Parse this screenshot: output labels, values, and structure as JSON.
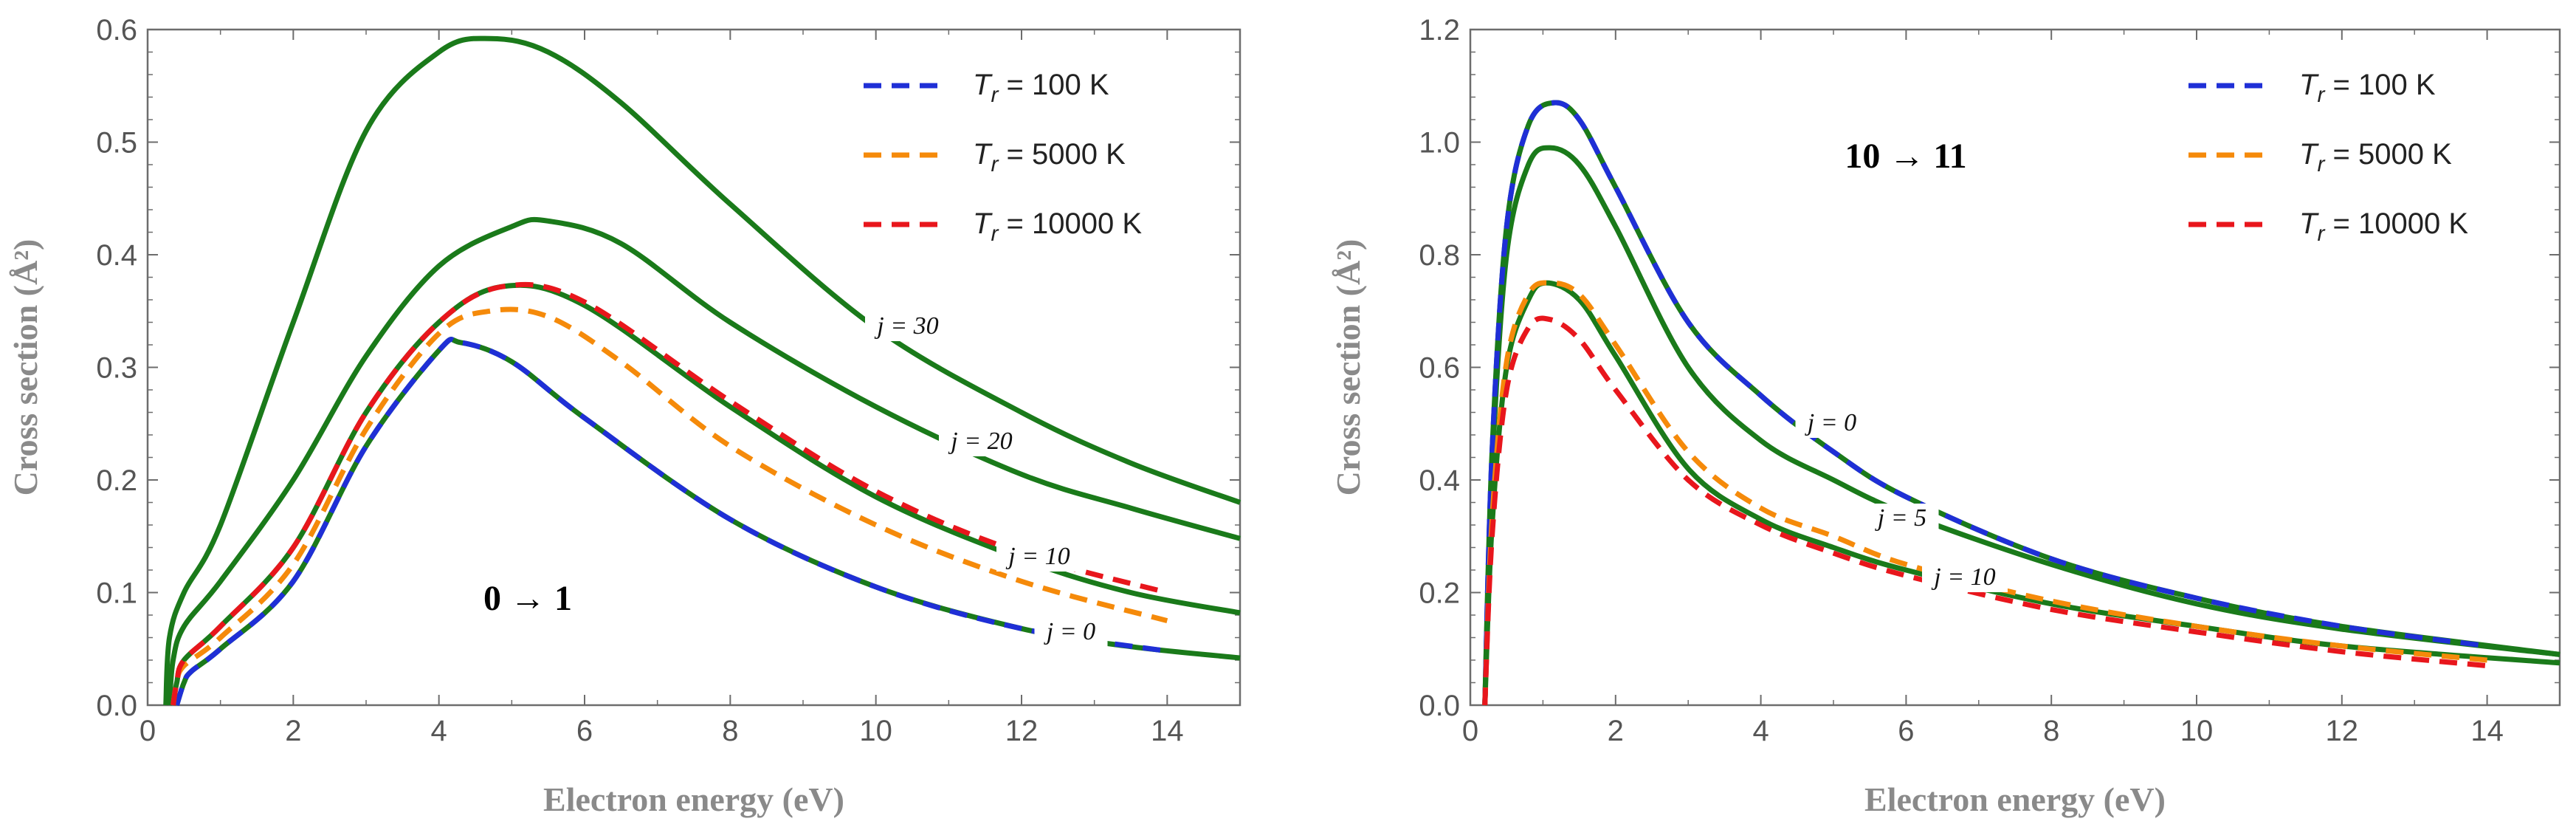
{
  "chart_data": [
    {
      "type": "line",
      "title": "",
      "annotation": "0 → 1",
      "xlabel": "Electron energy (eV)",
      "ylabel": "Cross section (Å²)",
      "xlim": [
        0,
        15
      ],
      "ylim": [
        0,
        0.6
      ],
      "xticks": [
        "0",
        "2",
        "4",
        "6",
        "8",
        "10",
        "12",
        "14"
      ],
      "yticks": [
        "0.0",
        "0.1",
        "0.2",
        "0.3",
        "0.4",
        "0.5",
        "0.6"
      ],
      "legend_position": "top-right",
      "legend": [
        {
          "symbol": "T",
          "subscript": "r",
          "rest": " = 100 K",
          "color": "#1f2fd6"
        },
        {
          "symbol": "T",
          "subscript": "r",
          "rest": " = 5000 K",
          "color": "#f58a0a"
        },
        {
          "symbol": "T",
          "subscript": "r",
          "rest": " = 10000 K",
          "color": "#e8161c"
        }
      ],
      "series": [
        {
          "name": "j = 30",
          "label": "j = 30",
          "style": "solid",
          "color": "#1a7a1a",
          "x": [
            0.25,
            0.3,
            0.5,
            1.0,
            2.0,
            3.0,
            4.0,
            4.7,
            5.5,
            6.5,
            8.0,
            10.0,
            12.0,
            13.5,
            15.0
          ],
          "y": [
            0.0,
            0.06,
            0.1,
            0.16,
            0.34,
            0.51,
            0.58,
            0.592,
            0.58,
            0.535,
            0.445,
            0.335,
            0.26,
            0.215,
            0.18
          ]
        },
        {
          "name": "j = 20",
          "label": "j = 20",
          "style": "solid",
          "color": "#1a7a1a",
          "x": [
            0.3,
            0.35,
            0.5,
            1.0,
            2.0,
            3.0,
            4.0,
            5.0,
            5.5,
            6.5,
            8.0,
            10.0,
            12.0,
            13.5,
            15.0
          ],
          "y": [
            0.0,
            0.04,
            0.07,
            0.11,
            0.2,
            0.31,
            0.39,
            0.425,
            0.43,
            0.41,
            0.34,
            0.265,
            0.205,
            0.175,
            0.148
          ]
        },
        {
          "name": "j = 10",
          "label": "j = 10",
          "style": "solid",
          "color": "#1a7a1a",
          "x": [
            0.35,
            0.4,
            0.5,
            1.0,
            2.0,
            3.0,
            4.0,
            4.9,
            6.0,
            8.0,
            10.0,
            12.0,
            13.5,
            15.0
          ],
          "y": [
            0.0,
            0.02,
            0.04,
            0.07,
            0.14,
            0.26,
            0.34,
            0.372,
            0.355,
            0.265,
            0.185,
            0.13,
            0.1,
            0.082
          ]
        },
        {
          "name": "j = 0",
          "label": "j = 0",
          "style": "solid",
          "color": "#1a7a1a",
          "x": [
            0.4,
            0.5,
            0.6,
            1.0,
            2.0,
            3.0,
            4.0,
            4.3,
            5.0,
            6.0,
            8.0,
            10.0,
            12.0,
            13.5,
            15.0
          ],
          "y": [
            0.0,
            0.02,
            0.03,
            0.05,
            0.11,
            0.23,
            0.315,
            0.322,
            0.305,
            0.255,
            0.165,
            0.105,
            0.068,
            0.052,
            0.042
          ]
        },
        {
          "name": "Tr = 100 K",
          "style": "dashed",
          "color": "#1f2fd6",
          "x": [
            0.4,
            0.5,
            0.6,
            1.0,
            2.0,
            3.0,
            4.0,
            4.3,
            5.0,
            6.0,
            8.0,
            10.0,
            12.0,
            14.0
          ],
          "y": [
            0.0,
            0.02,
            0.03,
            0.05,
            0.11,
            0.23,
            0.315,
            0.322,
            0.305,
            0.255,
            0.165,
            0.105,
            0.068,
            0.048
          ]
        },
        {
          "name": "Tr = 5000 K",
          "style": "dashed",
          "color": "#f58a0a",
          "x": [
            0.35,
            0.4,
            0.5,
            1.0,
            2.0,
            3.0,
            4.0,
            4.7,
            5.5,
            6.5,
            8.0,
            10.0,
            12.0,
            14.0
          ],
          "y": [
            0.0,
            0.02,
            0.035,
            0.06,
            0.125,
            0.245,
            0.33,
            0.35,
            0.345,
            0.305,
            0.23,
            0.16,
            0.11,
            0.075
          ]
        },
        {
          "name": "Tr = 10000 K",
          "style": "dashed",
          "color": "#e8161c",
          "x": [
            0.35,
            0.4,
            0.5,
            1.0,
            2.0,
            3.0,
            4.0,
            4.9,
            6.0,
            8.0,
            10.0,
            12.0,
            14.0
          ],
          "y": [
            0.0,
            0.02,
            0.04,
            0.07,
            0.14,
            0.26,
            0.34,
            0.372,
            0.358,
            0.27,
            0.19,
            0.135,
            0.1
          ]
        }
      ]
    },
    {
      "type": "line",
      "title": "",
      "annotation": "10 → 11",
      "xlabel": "Electron energy (eV)",
      "ylabel": "Cross section (Å²)",
      "xlim": [
        0,
        15
      ],
      "ylim": [
        0,
        1.2
      ],
      "xticks": [
        "0",
        "2",
        "4",
        "6",
        "8",
        "10",
        "12",
        "14"
      ],
      "yticks": [
        "0.0",
        "0.2",
        "0.4",
        "0.6",
        "0.8",
        "1.0",
        "1.2"
      ],
      "legend_position": "top-right",
      "legend": [
        {
          "symbol": "T",
          "subscript": "r",
          "rest": " = 100 K",
          "color": "#1f2fd6"
        },
        {
          "symbol": "T",
          "subscript": "r",
          "rest": " = 5000 K",
          "color": "#f58a0a"
        },
        {
          "symbol": "T",
          "subscript": "r",
          "rest": " = 10000 K",
          "color": "#e8161c"
        }
      ],
      "series": [
        {
          "name": "j = 0",
          "label": "j = 0",
          "style": "solid",
          "color": "#1a7a1a",
          "x": [
            0.2,
            0.3,
            0.5,
            0.8,
            1.15,
            1.5,
            2.0,
            3.0,
            4.0,
            5.0,
            6.0,
            8.0,
            10.0,
            12.0,
            15.0
          ],
          "y": [
            0.0,
            0.45,
            0.85,
            1.03,
            1.07,
            1.04,
            0.92,
            0.68,
            0.55,
            0.45,
            0.37,
            0.26,
            0.19,
            0.14,
            0.09
          ]
        },
        {
          "name": "j = 5",
          "label": "j = 5",
          "style": "solid",
          "color": "#1a7a1a",
          "x": [
            0.2,
            0.3,
            0.5,
            0.8,
            1.1,
            1.5,
            2.0,
            3.0,
            4.0,
            5.0,
            6.0,
            8.0,
            10.0,
            12.0,
            15.0
          ],
          "y": [
            0.0,
            0.42,
            0.8,
            0.96,
            0.99,
            0.96,
            0.85,
            0.6,
            0.47,
            0.4,
            0.34,
            0.25,
            0.18,
            0.135,
            0.09
          ]
        },
        {
          "name": "j = 10",
          "label": "j = 10",
          "style": "solid",
          "color": "#1a7a1a",
          "x": [
            0.2,
            0.3,
            0.5,
            0.8,
            1.05,
            1.5,
            2.0,
            3.0,
            4.0,
            5.0,
            6.0,
            8.0,
            10.0,
            12.0,
            15.0
          ],
          "y": [
            0.0,
            0.32,
            0.6,
            0.72,
            0.75,
            0.72,
            0.62,
            0.42,
            0.33,
            0.28,
            0.24,
            0.18,
            0.14,
            0.105,
            0.075
          ]
        },
        {
          "name": "Tr = 100 K",
          "style": "dashed",
          "color": "#1f2fd6",
          "x": [
            0.2,
            0.3,
            0.5,
            0.8,
            1.15,
            1.5,
            2.0,
            3.0,
            4.0,
            5.0,
            6.0,
            8.0,
            10.0,
            12.0,
            14.0
          ],
          "y": [
            0.0,
            0.45,
            0.85,
            1.03,
            1.07,
            1.04,
            0.92,
            0.68,
            0.55,
            0.45,
            0.37,
            0.26,
            0.19,
            0.14,
            0.105
          ]
        },
        {
          "name": "Tr = 5000 K",
          "style": "dashed",
          "color": "#f58a0a",
          "x": [
            0.2,
            0.3,
            0.5,
            0.8,
            1.1,
            1.5,
            2.0,
            3.0,
            4.0,
            5.0,
            6.0,
            8.0,
            10.0,
            12.0,
            14.0
          ],
          "y": [
            0.0,
            0.33,
            0.61,
            0.73,
            0.75,
            0.73,
            0.64,
            0.45,
            0.35,
            0.3,
            0.25,
            0.185,
            0.14,
            0.105,
            0.08
          ]
        },
        {
          "name": "Tr = 10000 K",
          "style": "dashed",
          "color": "#e8161c",
          "x": [
            0.2,
            0.3,
            0.5,
            0.8,
            1.1,
            1.5,
            2.0,
            3.0,
            4.0,
            5.0,
            6.0,
            8.0,
            10.0,
            12.0,
            14.0
          ],
          "y": [
            0.0,
            0.3,
            0.56,
            0.67,
            0.685,
            0.65,
            0.56,
            0.4,
            0.32,
            0.27,
            0.23,
            0.17,
            0.13,
            0.095,
            0.07
          ]
        }
      ]
    }
  ]
}
